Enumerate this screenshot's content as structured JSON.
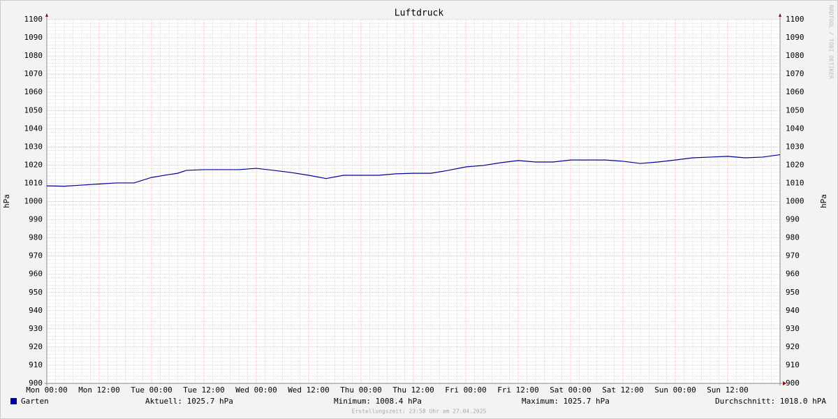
{
  "chart_data": {
    "type": "line",
    "title": "Luftdruck",
    "ylabel": "hPa",
    "y2label": "hPa",
    "watermark": "RRDTOOL / TOBI OETIKER",
    "footer": "Erstellungszeit: 23:58 Uhr am 27.04.2025",
    "x": [
      0,
      4,
      8,
      12,
      16,
      20,
      24,
      28,
      30,
      32,
      36,
      40,
      44,
      48,
      52,
      56,
      60,
      64,
      68,
      72,
      76,
      80,
      84,
      88,
      92,
      96,
      100,
      104,
      108,
      112,
      116,
      120,
      124,
      128,
      132,
      136,
      140,
      144,
      148,
      152,
      156,
      160,
      164,
      168
    ],
    "series": [
      {
        "name": "Garten",
        "color": "#000099",
        "values": [
          1008.6,
          1008.4,
          1009.0,
          1009.6,
          1010.2,
          1010.2,
          1013.2,
          1014.8,
          1015.5,
          1017.1,
          1017.5,
          1017.5,
          1017.5,
          1018.2,
          1017.1,
          1015.9,
          1014.4,
          1012.6,
          1014.4,
          1014.4,
          1014.4,
          1015.2,
          1015.5,
          1015.5,
          1017.1,
          1019.0,
          1019.8,
          1021.3,
          1022.5,
          1021.7,
          1021.7,
          1022.8,
          1022.8,
          1022.8,
          1022.1,
          1020.9,
          1021.7,
          1022.8,
          1024.0,
          1024.4,
          1024.8,
          1024.0,
          1024.4,
          1025.7
        ]
      }
    ],
    "stats": [
      "Aktuell: 1025.7 hPa",
      "Minimum: 1008.4 hPa",
      "Maximum: 1025.7 hPa",
      "Durchschnitt: 1018.0 hPA"
    ],
    "xlim": [
      0,
      168
    ],
    "xticks": [
      {
        "value": 0,
        "label": "Mon 00:00"
      },
      {
        "value": 12,
        "label": "Mon 12:00"
      },
      {
        "value": 24,
        "label": "Tue 00:00"
      },
      {
        "value": 36,
        "label": "Tue 12:00"
      },
      {
        "value": 48,
        "label": "Wed 00:00"
      },
      {
        "value": 60,
        "label": "Wed 12:00"
      },
      {
        "value": 72,
        "label": "Thu 00:00"
      },
      {
        "value": 84,
        "label": "Thu 12:00"
      },
      {
        "value": 96,
        "label": "Fri 00:00"
      },
      {
        "value": 108,
        "label": "Fri 12:00"
      },
      {
        "value": 120,
        "label": "Sat 00:00"
      },
      {
        "value": 132,
        "label": "Sat 12:00"
      },
      {
        "value": 144,
        "label": "Sun 00:00"
      },
      {
        "value": 156,
        "label": "Sun 12:00"
      }
    ],
    "ylim": [
      900,
      1100
    ],
    "yticks": [
      900,
      910,
      920,
      930,
      940,
      950,
      960,
      970,
      980,
      990,
      1000,
      1010,
      1020,
      1030,
      1040,
      1050,
      1060,
      1070,
      1080,
      1090,
      1100
    ],
    "grid": true
  }
}
